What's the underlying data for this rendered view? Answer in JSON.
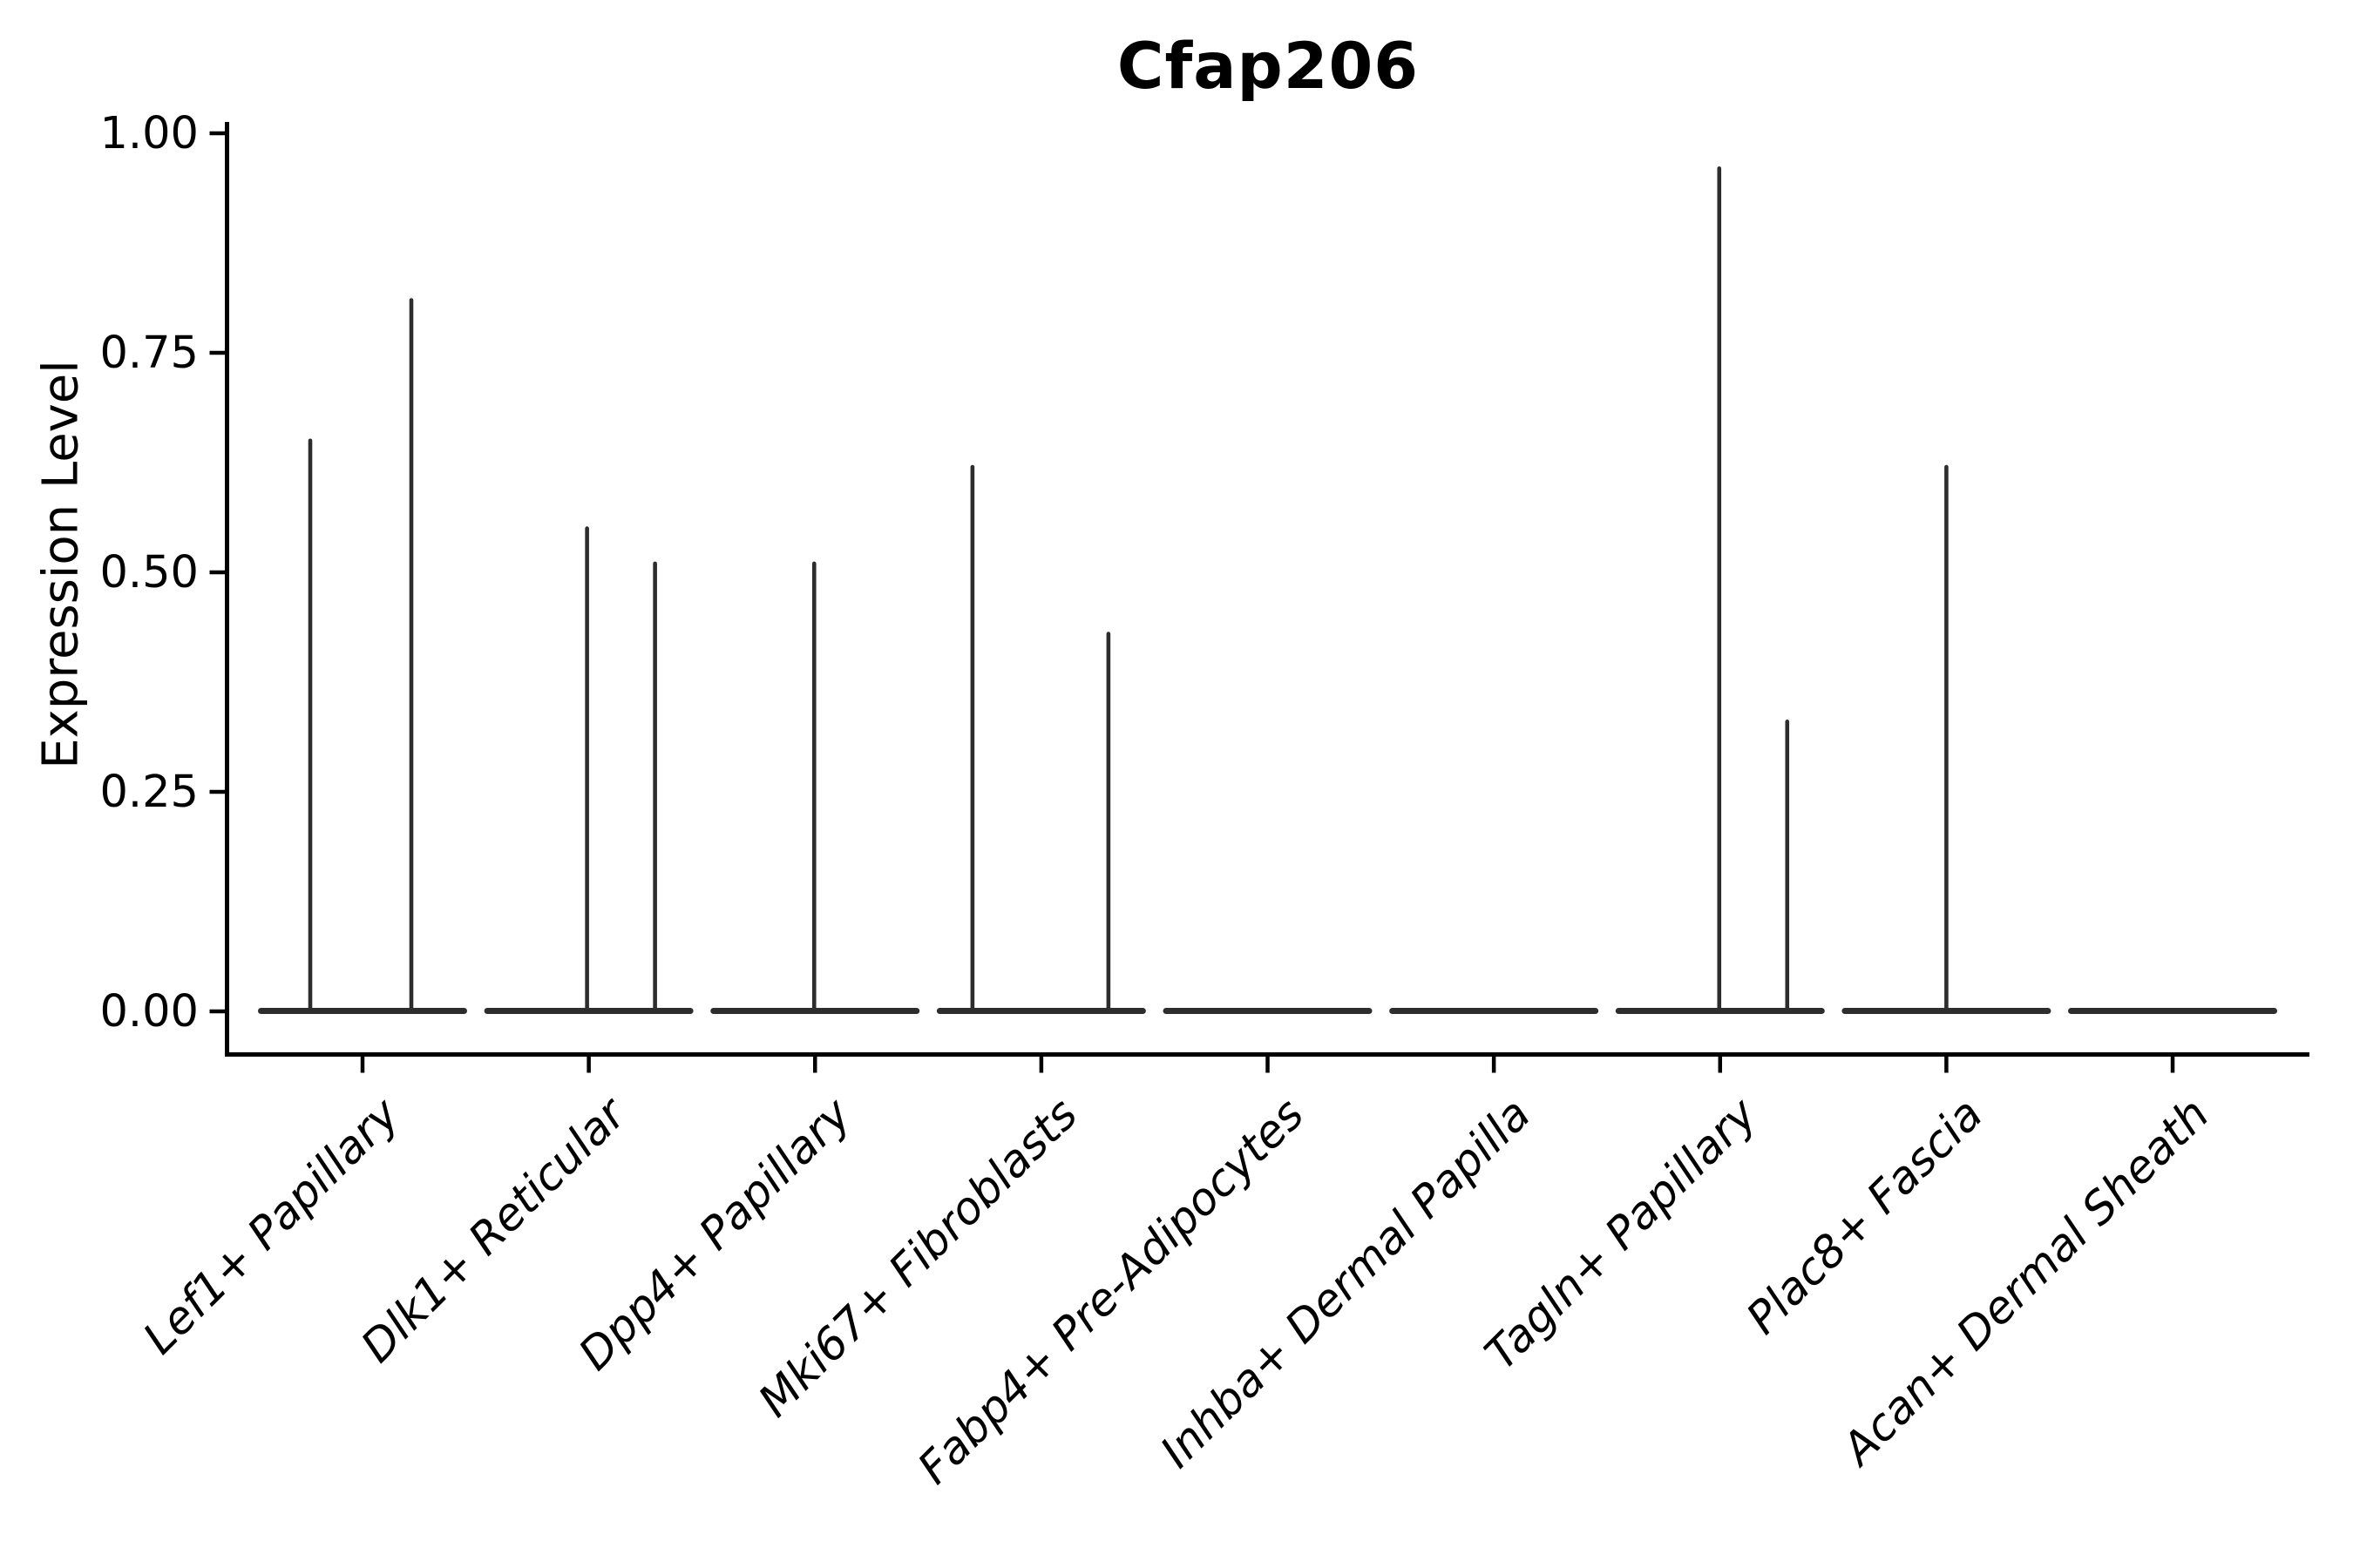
{
  "chart_data": {
    "type": "violin",
    "title": "Cfap206",
    "ylabel": "Expression Level",
    "xlabel": "",
    "ylim": [
      0.0,
      1.0
    ],
    "yticks": [
      "0.00",
      "0.25",
      "0.50",
      "0.75",
      "1.00"
    ],
    "ytick_values": [
      0.0,
      0.25,
      0.5,
      0.75,
      1.0
    ],
    "grid": false,
    "legend": null,
    "categories": [
      "Lef1+ Papillary",
      "Dlk1+ Reticular",
      "Dpp4+ Papillary",
      "Mki67+ Fibroblasts",
      "Fabp4+ Pre-Adipocytes",
      "Inhba+ Dermal Papilla",
      "Tagln+ Papillary",
      "Plac8+ Fascia",
      "Acan+ Dermal Sheath"
    ],
    "violins": [
      {
        "category": "Lef1+ Papillary",
        "flat_base": true,
        "spikes": [
          {
            "offset": -60,
            "value": 0.65
          },
          {
            "offset": 56,
            "value": 0.81
          }
        ]
      },
      {
        "category": "Dlk1+ Reticular",
        "flat_base": true,
        "spikes": [
          {
            "offset": -2,
            "value": 0.55
          },
          {
            "offset": 76,
            "value": 0.51
          }
        ]
      },
      {
        "category": "Dpp4+ Papillary",
        "flat_base": true,
        "spikes": [
          {
            "offset": -1,
            "value": 0.51
          }
        ]
      },
      {
        "category": "Mki67+ Fibroblasts",
        "flat_base": true,
        "spikes": [
          {
            "offset": -79,
            "value": 0.62
          },
          {
            "offset": 77,
            "value": 0.43
          }
        ]
      },
      {
        "category": "Fabp4+ Pre-Adipocytes",
        "flat_base": true,
        "spikes": []
      },
      {
        "category": "Inhba+ Dermal Papilla",
        "flat_base": true,
        "spikes": []
      },
      {
        "category": "Tagln+ Papillary",
        "flat_base": true,
        "spikes": [
          {
            "offset": -1,
            "value": 0.96
          },
          {
            "offset": 77,
            "value": 0.33
          }
        ]
      },
      {
        "category": "Plac8+ Fascia",
        "flat_base": true,
        "spikes": [
          {
            "offset": 0,
            "value": 0.62
          }
        ]
      },
      {
        "category": "Acan+ Dermal Sheath",
        "flat_base": true,
        "spikes": []
      }
    ],
    "colors": {
      "violin": "#2d2d2d",
      "axis": "#000000",
      "text": "#000000",
      "background": "#ffffff"
    }
  }
}
